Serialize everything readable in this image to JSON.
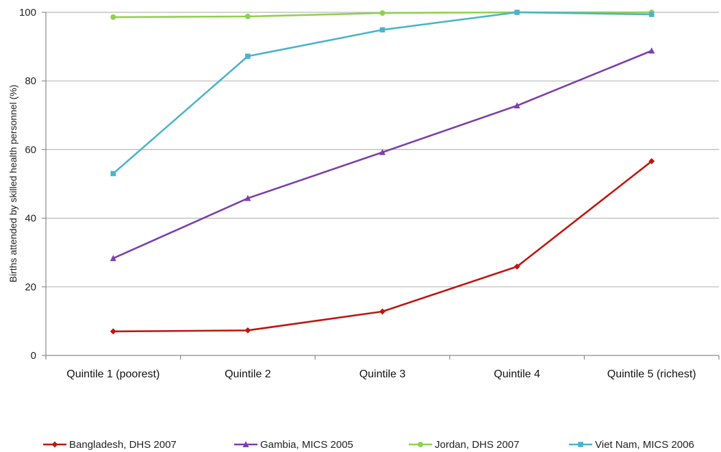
{
  "chart_data": {
    "type": "line",
    "title": "",
    "xlabel": "",
    "ylabel": "Births attended by skilled health personnel (%)",
    "ylim": [
      0,
      100
    ],
    "yticks": [
      0,
      20,
      40,
      60,
      80,
      100
    ],
    "grid": true,
    "legend_position": "bottom",
    "categories": [
      "Quintile 1 (poorest)",
      "Quintile 2",
      "Quintile 3",
      "Quintile 4",
      "Quintile 5 (richest)"
    ],
    "series": [
      {
        "name": "Bangladesh, DHS 2007",
        "color": "#c0150f",
        "marker": "diamond",
        "values": [
          7.0,
          7.3,
          12.8,
          25.9,
          56.6
        ]
      },
      {
        "name": "Gambia, MICS 2005",
        "color": "#7a3fae",
        "marker": "triangle",
        "values": [
          28.3,
          45.8,
          59.2,
          72.8,
          88.8
        ]
      },
      {
        "name": "Jordan, DHS 2007",
        "color": "#8fd14f",
        "marker": "circle",
        "values": [
          98.6,
          98.8,
          99.8,
          100,
          100
        ]
      },
      {
        "name": "Viet Nam, MICS 2006",
        "color": "#4bb3cc",
        "marker": "square",
        "values": [
          53.0,
          87.2,
          94.9,
          100,
          99.4
        ]
      }
    ]
  }
}
